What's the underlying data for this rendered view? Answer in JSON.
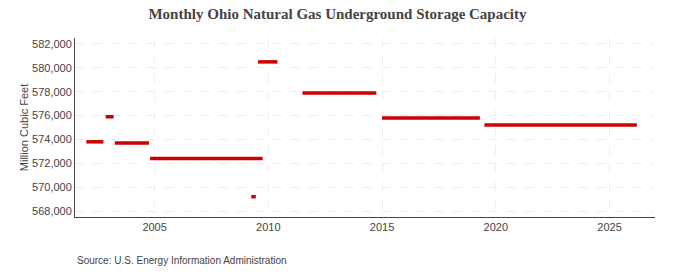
{
  "chart_data": {
    "type": "line",
    "title": "Monthly Ohio Natural Gas Underground Storage Capacity",
    "ylabel": "Million Cubic Feet",
    "source": "Source: U.S. Energy Information Administration",
    "color": "#cc0000",
    "grid": true,
    "xlim": [
      2001.5,
      2027.0
    ],
    "ylim": [
      567500,
      582500
    ],
    "xticks": [
      2005,
      2010,
      2015,
      2020,
      2025
    ],
    "yticks": [
      {
        "value": 568000,
        "label": "568,000"
      },
      {
        "value": 570000,
        "label": "570,000"
      },
      {
        "value": 572000,
        "label": "572,000"
      },
      {
        "value": 574000,
        "label": "574,000"
      },
      {
        "value": 576000,
        "label": "576,000"
      },
      {
        "value": 578000,
        "label": "578,000"
      },
      {
        "value": 580000,
        "label": "580,000"
      },
      {
        "value": 582000,
        "label": "582,000"
      }
    ],
    "series": [
      {
        "x": [
          2002.0,
          2002.75
        ],
        "values": [
          573800,
          573800
        ]
      },
      {
        "x": [
          2002.85,
          2003.2
        ],
        "values": [
          575900,
          575900
        ]
      },
      {
        "x": [
          2003.25,
          2004.75
        ],
        "values": [
          573700,
          573700
        ]
      },
      {
        "x": [
          2004.8,
          2009.75
        ],
        "values": [
          572400,
          572400
        ]
      },
      {
        "x": [
          2009.25,
          2009.45
        ],
        "values": [
          569200,
          569200
        ]
      },
      {
        "x": [
          2009.55,
          2010.4
        ],
        "values": [
          580500,
          580500
        ]
      },
      {
        "x": [
          2011.5,
          2014.75
        ],
        "values": [
          577900,
          577900
        ]
      },
      {
        "x": [
          2015.0,
          2019.3
        ],
        "values": [
          575800,
          575800
        ]
      },
      {
        "x": [
          2019.5,
          2026.2
        ],
        "values": [
          575200,
          575200
        ]
      }
    ]
  }
}
